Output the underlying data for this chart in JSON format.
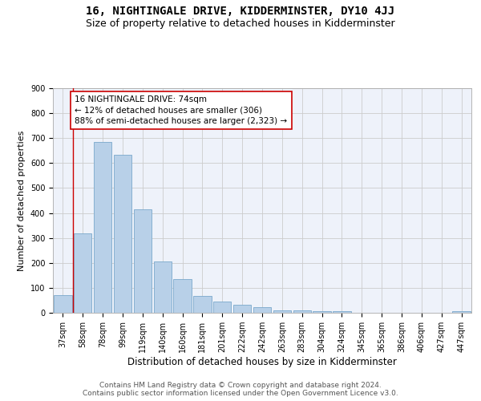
{
  "title": "16, NIGHTINGALE DRIVE, KIDDERMINSTER, DY10 4JJ",
  "subtitle": "Size of property relative to detached houses in Kidderminster",
  "xlabel": "Distribution of detached houses by size in Kidderminster",
  "ylabel": "Number of detached properties",
  "categories": [
    "37sqm",
    "58sqm",
    "78sqm",
    "99sqm",
    "119sqm",
    "140sqm",
    "160sqm",
    "181sqm",
    "201sqm",
    "222sqm",
    "242sqm",
    "263sqm",
    "283sqm",
    "304sqm",
    "324sqm",
    "345sqm",
    "365sqm",
    "386sqm",
    "406sqm",
    "427sqm",
    "447sqm"
  ],
  "values": [
    72,
    318,
    685,
    632,
    414,
    207,
    135,
    68,
    46,
    32,
    22,
    11,
    11,
    5,
    5,
    0,
    0,
    0,
    0,
    0,
    8
  ],
  "bar_color": "#b8d0e8",
  "bar_edge_color": "#7aa8cc",
  "vline_x": 0.5,
  "vline_color": "#cc0000",
  "annotation_text": "16 NIGHTINGALE DRIVE: 74sqm\n← 12% of detached houses are smaller (306)\n88% of semi-detached houses are larger (2,323) →",
  "annotation_box_color": "#ffffff",
  "annotation_box_edge": "#cc0000",
  "ylim": [
    0,
    900
  ],
  "yticks": [
    0,
    100,
    200,
    300,
    400,
    500,
    600,
    700,
    800,
    900
  ],
  "grid_color": "#cccccc",
  "bg_color": "#eef2fa",
  "footer": "Contains HM Land Registry data © Crown copyright and database right 2024.\nContains public sector information licensed under the Open Government Licence v3.0.",
  "title_fontsize": 10,
  "subtitle_fontsize": 9,
  "xlabel_fontsize": 8.5,
  "ylabel_fontsize": 8,
  "tick_fontsize": 7,
  "footer_fontsize": 6.5,
  "ann_fontsize": 7.5
}
